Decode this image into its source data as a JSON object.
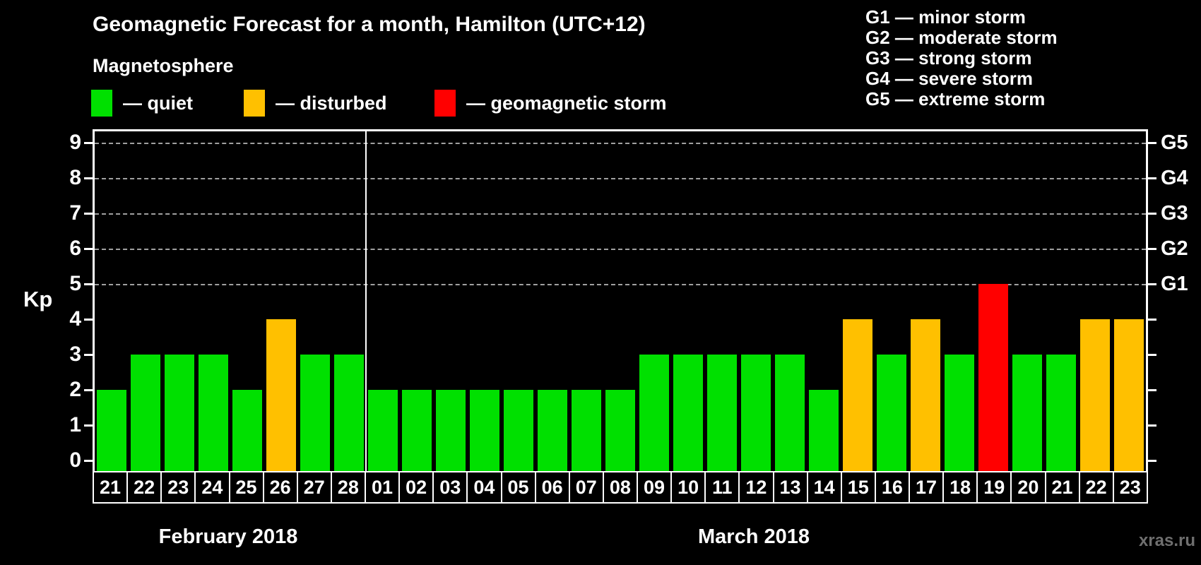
{
  "title": "Geomagnetic Forecast for a month, Hamilton (UTC+12)",
  "subtitle": "Magnetosphere",
  "legend": {
    "items": [
      {
        "key": "quiet",
        "label": "— quiet"
      },
      {
        "key": "disturbed",
        "label": "— disturbed"
      },
      {
        "key": "storm",
        "label": "— geomagnetic storm"
      }
    ]
  },
  "g_scale_legend": [
    "G1 — minor storm",
    "G2 — moderate storm",
    "G3 — strong storm",
    "G4 — severe storm",
    "G5 — extreme storm"
  ],
  "watermark": "xras.ru",
  "chart_data": {
    "type": "bar",
    "title": "Geomagnetic Forecast for a month, Hamilton (UTC+12)",
    "xlabel": "",
    "ylabel": "Kp",
    "ylim": [
      0,
      9
    ],
    "yticks": [
      0,
      1,
      2,
      3,
      4,
      5,
      6,
      7,
      8,
      9
    ],
    "dashed_gridlines_at": [
      5,
      6,
      7,
      8,
      9
    ],
    "grid": "horizontal-dashed-5-to-9",
    "legend_position": "top",
    "right_axis": [
      {
        "value": 5,
        "label": "G1"
      },
      {
        "value": 6,
        "label": "G2"
      },
      {
        "value": 7,
        "label": "G3"
      },
      {
        "value": 8,
        "label": "G4"
      },
      {
        "value": 9,
        "label": "G5"
      }
    ],
    "status_colors": {
      "quiet": "#00e000",
      "disturbed": "#ffc000",
      "storm": "#ff0000"
    },
    "months": [
      {
        "label": "February 2018",
        "days": [
          {
            "date": "21",
            "kp": 2,
            "status": "quiet"
          },
          {
            "date": "22",
            "kp": 3,
            "status": "quiet"
          },
          {
            "date": "23",
            "kp": 3,
            "status": "quiet"
          },
          {
            "date": "24",
            "kp": 3,
            "status": "quiet"
          },
          {
            "date": "25",
            "kp": 2,
            "status": "quiet"
          },
          {
            "date": "26",
            "kp": 4,
            "status": "disturbed"
          },
          {
            "date": "27",
            "kp": 3,
            "status": "quiet"
          },
          {
            "date": "28",
            "kp": 3,
            "status": "quiet"
          }
        ]
      },
      {
        "label": "March 2018",
        "days": [
          {
            "date": "01",
            "kp": 2,
            "status": "quiet"
          },
          {
            "date": "02",
            "kp": 2,
            "status": "quiet"
          },
          {
            "date": "03",
            "kp": 2,
            "status": "quiet"
          },
          {
            "date": "04",
            "kp": 2,
            "status": "quiet"
          },
          {
            "date": "05",
            "kp": 2,
            "status": "quiet"
          },
          {
            "date": "06",
            "kp": 2,
            "status": "quiet"
          },
          {
            "date": "07",
            "kp": 2,
            "status": "quiet"
          },
          {
            "date": "08",
            "kp": 2,
            "status": "quiet"
          },
          {
            "date": "09",
            "kp": 3,
            "status": "quiet"
          },
          {
            "date": "10",
            "kp": 3,
            "status": "quiet"
          },
          {
            "date": "11",
            "kp": 3,
            "status": "quiet"
          },
          {
            "date": "12",
            "kp": 3,
            "status": "quiet"
          },
          {
            "date": "13",
            "kp": 3,
            "status": "quiet"
          },
          {
            "date": "14",
            "kp": 2,
            "status": "quiet"
          },
          {
            "date": "15",
            "kp": 4,
            "status": "disturbed"
          },
          {
            "date": "16",
            "kp": 3,
            "status": "quiet"
          },
          {
            "date": "17",
            "kp": 4,
            "status": "disturbed"
          },
          {
            "date": "18",
            "kp": 3,
            "status": "quiet"
          },
          {
            "date": "19",
            "kp": 5,
            "status": "storm"
          },
          {
            "date": "20",
            "kp": 3,
            "status": "quiet"
          },
          {
            "date": "21",
            "kp": 3,
            "status": "quiet"
          },
          {
            "date": "22",
            "kp": 4,
            "status": "disturbed"
          },
          {
            "date": "23",
            "kp": 4,
            "status": "disturbed"
          }
        ]
      }
    ]
  }
}
